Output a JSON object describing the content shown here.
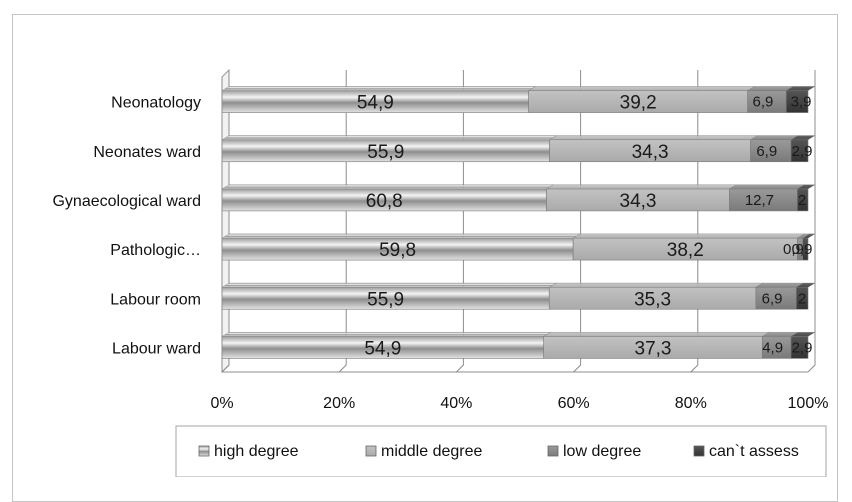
{
  "chart_data": {
    "type": "bar",
    "orientation": "horizontal",
    "stacked": "percent",
    "categories": [
      "Labour ward",
      "Labour room",
      "Pathologic…",
      "Gynaecological ward",
      "Neonates ward",
      "Neonatology"
    ],
    "series": [
      {
        "name": "high degree",
        "values": [
          54.9,
          55.9,
          59.8,
          60.8,
          55.9,
          54.9
        ],
        "labels": [
          "54,9",
          "55,9",
          "59,8",
          "60,8",
          "55,9",
          "54,9"
        ],
        "color": "#d0d0d0"
      },
      {
        "name": "middle degree",
        "values": [
          37.3,
          35.3,
          38.2,
          34.3,
          34.3,
          39.2
        ],
        "labels": [
          "37,3",
          "35,3",
          "38,2",
          "34,3",
          "34,3",
          "39,2"
        ],
        "color": "#b3b3b3"
      },
      {
        "name": "low degree",
        "values": [
          4.9,
          6.9,
          0.9,
          12.7,
          6.9,
          6.9
        ],
        "labels": [
          "4,9",
          "6,9",
          "0,9",
          "12,7",
          "6,9",
          "6,9"
        ],
        "color": "#8a8a8a"
      },
      {
        "name": "can`t assess",
        "values": [
          2.9,
          2,
          0.9,
          2,
          2.9,
          3.9
        ],
        "labels": [
          "2,9",
          "2",
          "0,9",
          "2",
          "2,9",
          "3,9"
        ],
        "color": "#444444"
      }
    ],
    "xticks": [
      "0%",
      "20%",
      "40%",
      "60%",
      "80%",
      "100%"
    ],
    "xlim": [
      0,
      100
    ],
    "grid": true,
    "legend_position": "bottom"
  }
}
